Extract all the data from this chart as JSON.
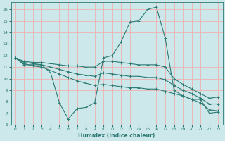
{
  "xlabel": "Humidex (Indice chaleur)",
  "bg_color": "#cce8eb",
  "grid_color": "#f0b0b0",
  "line_color": "#2d7a72",
  "xlim": [
    -0.5,
    23.5
  ],
  "ylim": [
    6,
    16.6
  ],
  "yticks": [
    6,
    7,
    8,
    9,
    10,
    11,
    12,
    13,
    14,
    15,
    16
  ],
  "xticks": [
    0,
    1,
    2,
    3,
    4,
    5,
    6,
    7,
    8,
    9,
    10,
    11,
    12,
    13,
    14,
    15,
    16,
    17,
    18,
    19,
    20,
    21,
    22,
    23
  ],
  "series_main": [
    [
      0,
      11.8
    ],
    [
      1,
      11.2
    ],
    [
      2,
      11.2
    ],
    [
      3,
      11.2
    ],
    [
      4,
      10.5
    ],
    [
      5,
      7.9
    ],
    [
      6,
      6.5
    ],
    [
      7,
      7.4
    ],
    [
      8,
      7.5
    ],
    [
      9,
      7.9
    ],
    [
      10,
      11.8
    ],
    [
      11,
      12.0
    ],
    [
      12,
      13.2
    ],
    [
      13,
      14.9
    ],
    [
      14,
      15.0
    ],
    [
      15,
      16.0
    ],
    [
      16,
      16.2
    ],
    [
      17,
      13.5
    ],
    [
      18,
      9.0
    ],
    [
      19,
      8.5
    ],
    [
      20,
      8.2
    ],
    [
      21,
      8.2
    ],
    [
      22,
      7.0
    ],
    [
      23,
      7.1
    ]
  ],
  "series_line1": [
    [
      0,
      11.8
    ],
    [
      1,
      11.5
    ],
    [
      2,
      11.4
    ],
    [
      3,
      11.4
    ],
    [
      4,
      11.3
    ],
    [
      5,
      11.2
    ],
    [
      6,
      11.1
    ],
    [
      7,
      11.1
    ],
    [
      8,
      11.0
    ],
    [
      9,
      11.0
    ],
    [
      10,
      11.5
    ],
    [
      11,
      11.5
    ],
    [
      12,
      11.4
    ],
    [
      13,
      11.3
    ],
    [
      14,
      11.2
    ],
    [
      15,
      11.2
    ],
    [
      16,
      11.2
    ],
    [
      17,
      11.0
    ],
    [
      18,
      10.0
    ],
    [
      19,
      9.5
    ],
    [
      20,
      9.1
    ],
    [
      21,
      8.7
    ],
    [
      22,
      8.3
    ],
    [
      23,
      8.4
    ]
  ],
  "series_line2": [
    [
      0,
      11.8
    ],
    [
      1,
      11.4
    ],
    [
      2,
      11.3
    ],
    [
      3,
      11.2
    ],
    [
      4,
      11.0
    ],
    [
      5,
      10.8
    ],
    [
      6,
      10.6
    ],
    [
      7,
      10.4
    ],
    [
      8,
      10.3
    ],
    [
      9,
      10.2
    ],
    [
      10,
      10.5
    ],
    [
      11,
      10.4
    ],
    [
      12,
      10.3
    ],
    [
      13,
      10.2
    ],
    [
      14,
      10.2
    ],
    [
      15,
      10.1
    ],
    [
      16,
      10.1
    ],
    [
      17,
      9.9
    ],
    [
      18,
      9.4
    ],
    [
      19,
      9.0
    ],
    [
      20,
      8.7
    ],
    [
      21,
      8.3
    ],
    [
      22,
      7.8
    ],
    [
      23,
      7.8
    ]
  ],
  "series_line3": [
    [
      0,
      11.8
    ],
    [
      1,
      11.3
    ],
    [
      2,
      11.1
    ],
    [
      3,
      11.0
    ],
    [
      4,
      10.7
    ],
    [
      5,
      10.4
    ],
    [
      6,
      10.1
    ],
    [
      7,
      9.8
    ],
    [
      8,
      9.6
    ],
    [
      9,
      9.4
    ],
    [
      10,
      9.5
    ],
    [
      11,
      9.4
    ],
    [
      12,
      9.3
    ],
    [
      13,
      9.2
    ],
    [
      14,
      9.2
    ],
    [
      15,
      9.1
    ],
    [
      16,
      9.1
    ],
    [
      17,
      8.9
    ],
    [
      18,
      8.7
    ],
    [
      19,
      8.5
    ],
    [
      20,
      8.2
    ],
    [
      21,
      7.9
    ],
    [
      22,
      7.3
    ],
    [
      23,
      7.2
    ]
  ]
}
